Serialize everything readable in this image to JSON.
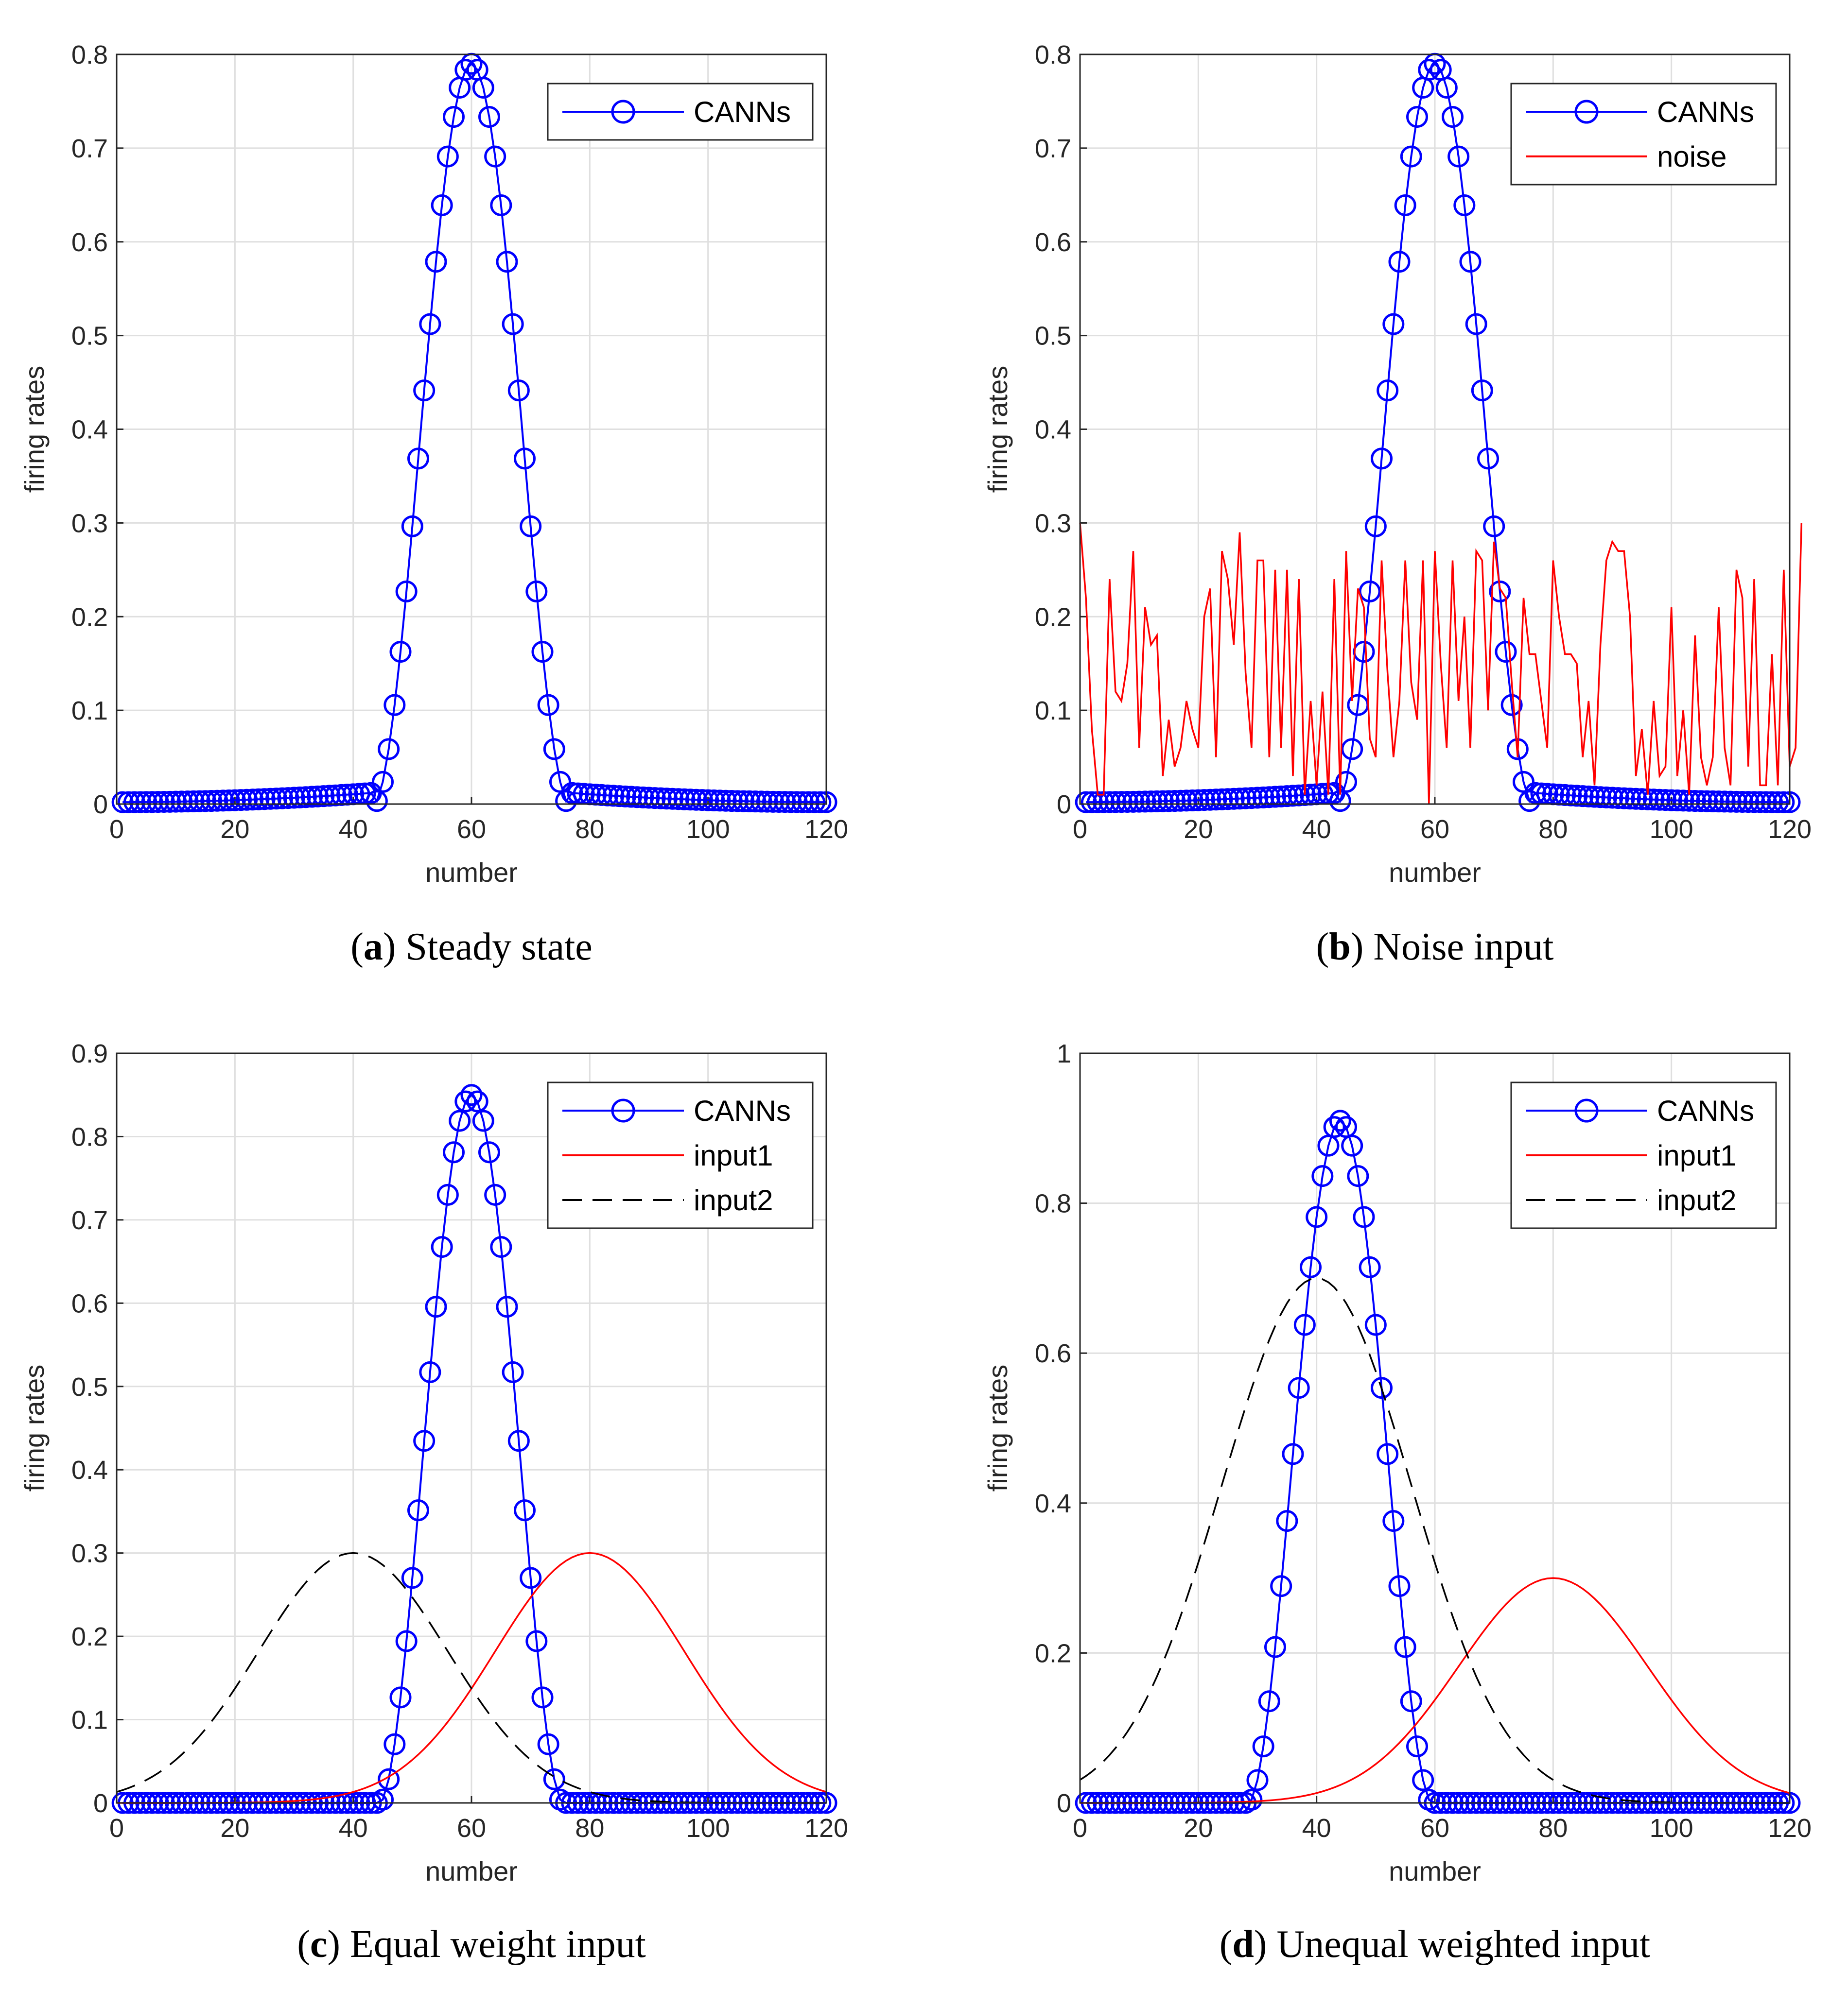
{
  "colors": {
    "canns": "#0000FF",
    "noise": "#FF0000",
    "input1": "#FF0000",
    "input2": "#000000",
    "grid": "#DFDFDF",
    "axis": "#262626"
  },
  "chart_data": [
    {
      "type": "line",
      "panel": "a",
      "caption_letter": "a",
      "caption_text": "Steady state",
      "xlabel": "number",
      "ylabel": "firing rates",
      "xlim": [
        0,
        120
      ],
      "ylim": [
        0,
        0.8
      ],
      "xticks": [
        "0",
        "20",
        "40",
        "60",
        "80",
        "100",
        "120"
      ],
      "yticks": [
        "0",
        "0.1",
        "0.2",
        "0.3",
        "0.4",
        "0.5",
        "0.6",
        "0.7",
        "0.8"
      ],
      "grid": true,
      "legend": "top-right",
      "series": [
        {
          "name": "CANNs",
          "style": "circle-line",
          "model": "bump",
          "center": 60,
          "peak": 0.79,
          "half_width": 16.5,
          "baseline": [
            0.002,
            0.012
          ],
          "floor_to": 120
        }
      ]
    },
    {
      "type": "line",
      "panel": "b",
      "caption_letter": "b",
      "caption_text": "Noise input",
      "xlabel": "number",
      "ylabel": "firing rates",
      "xlim": [
        0,
        120
      ],
      "ylim": [
        0,
        0.8
      ],
      "xticks": [
        "0",
        "20",
        "40",
        "60",
        "80",
        "100",
        "120"
      ],
      "yticks": [
        "0",
        "0.1",
        "0.2",
        "0.3",
        "0.4",
        "0.5",
        "0.6",
        "0.7",
        "0.8"
      ],
      "grid": true,
      "legend": "top-right",
      "series": [
        {
          "name": "CANNs",
          "style": "circle-line",
          "model": "bump",
          "center": 60,
          "peak": 0.79,
          "half_width": 16.5,
          "baseline": [
            0.002,
            0.012
          ],
          "floor_to": 120
        },
        {
          "name": "noise",
          "style": "line",
          "x_start": 0,
          "x_step": 1,
          "values": [
            0.3,
            0.22,
            0.08,
            0.01,
            0.01,
            0.24,
            0.12,
            0.11,
            0.15,
            0.27,
            0.06,
            0.21,
            0.17,
            0.18,
            0.03,
            0.09,
            0.04,
            0.06,
            0.11,
            0.08,
            0.06,
            0.2,
            0.23,
            0.05,
            0.27,
            0.24,
            0.17,
            0.29,
            0.14,
            0.06,
            0.26,
            0.26,
            0.05,
            0.25,
            0.06,
            0.25,
            0.03,
            0.24,
            0.01,
            0.11,
            0.02,
            0.12,
            0.01,
            0.24,
            0.01,
            0.27,
            0.11,
            0.23,
            0.21,
            0.07,
            0.05,
            0.26,
            0.14,
            0.05,
            0.11,
            0.26,
            0.13,
            0.09,
            0.26,
            0.0,
            0.27,
            0.15,
            0.06,
            0.26,
            0.11,
            0.2,
            0.06,
            0.27,
            0.26,
            0.1,
            0.28,
            0.23,
            0.22,
            0.13,
            0.05,
            0.22,
            0.16,
            0.16,
            0.11,
            0.06,
            0.26,
            0.2,
            0.16,
            0.16,
            0.15,
            0.05,
            0.11,
            0.02,
            0.17,
            0.26,
            0.28,
            0.27,
            0.27,
            0.2,
            0.03,
            0.08,
            0.01,
            0.11,
            0.03,
            0.04,
            0.21,
            0.03,
            0.1,
            0.01,
            0.18,
            0.05,
            0.02,
            0.05,
            0.21,
            0.06,
            0.02,
            0.25,
            0.22,
            0.04,
            0.24,
            0.02,
            0.02,
            0.16,
            0.02,
            0.25,
            0.04,
            0.06,
            0.3
          ]
        }
      ]
    },
    {
      "type": "line",
      "panel": "c",
      "caption_letter": "c",
      "caption_text": "Equal weight input",
      "xlabel": "number",
      "ylabel": "firing rates",
      "xlim": [
        0,
        120
      ],
      "ylim": [
        0,
        0.9
      ],
      "xticks": [
        "0",
        "20",
        "40",
        "60",
        "80",
        "100",
        "120"
      ],
      "yticks": [
        "0",
        "0.1",
        "0.2",
        "0.3",
        "0.4",
        "0.5",
        "0.6",
        "0.7",
        "0.8",
        "0.9"
      ],
      "grid": true,
      "legend": "top-right",
      "series": [
        {
          "name": "CANNs",
          "style": "circle-line",
          "model": "bump",
          "center": 60,
          "peak": 0.85,
          "half_width": 15.5,
          "baseline": [
            0,
            0
          ],
          "floor_to": 120
        },
        {
          "name": "input1",
          "style": "line",
          "model": "gaussian",
          "center": 80,
          "peak": 0.3,
          "sigma": 16
        },
        {
          "name": "input2",
          "style": "dashed",
          "model": "gaussian",
          "center": 40,
          "peak": 0.3,
          "sigma": 16
        }
      ]
    },
    {
      "type": "line",
      "panel": "d",
      "caption_letter": "d",
      "caption_text": "Unequal weighted input",
      "xlabel": "number",
      "ylabel": "firing rates",
      "xlim": [
        0,
        120
      ],
      "ylim": [
        0,
        1
      ],
      "xticks": [
        "0",
        "20",
        "40",
        "60",
        "80",
        "100",
        "120"
      ],
      "yticks": [
        "0",
        "0.2",
        "0.4",
        "0.6",
        "0.8",
        "1"
      ],
      "grid": true,
      "legend": "top-right",
      "series": [
        {
          "name": "CANNs",
          "style": "circle-line",
          "model": "bump",
          "center": 44,
          "peak": 0.91,
          "half_width": 15.5,
          "baseline": [
            0,
            0
          ],
          "floor_to": 120
        },
        {
          "name": "input1",
          "style": "line",
          "model": "gaussian",
          "center": 80,
          "peak": 0.3,
          "sigma": 16
        },
        {
          "name": "input2",
          "style": "dashed",
          "model": "gaussian",
          "center": 40,
          "peak": 0.7,
          "sigma": 16
        }
      ]
    }
  ]
}
